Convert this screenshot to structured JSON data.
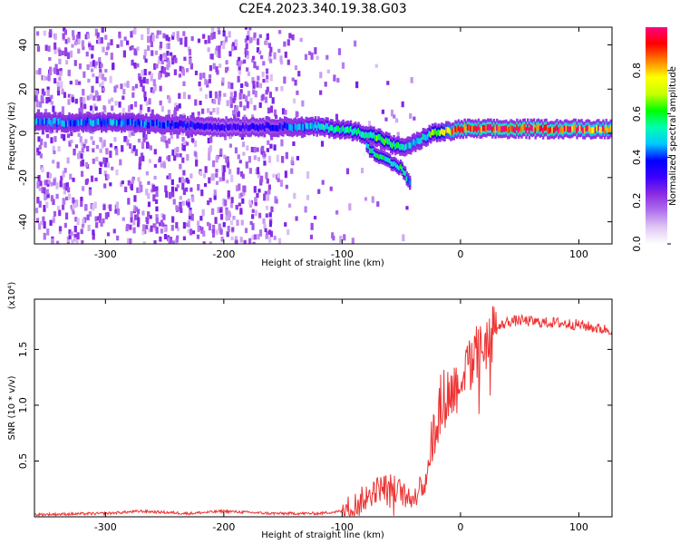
{
  "figure": {
    "title": "C2E4.2023.340.19.38.G03"
  },
  "chart_data": [
    {
      "type": "heatmap",
      "xlabel": "Height of straight line (km)",
      "ylabel": "Frequency (Hz)",
      "xlim": [
        -360,
        128
      ],
      "ylim": [
        -50,
        48
      ],
      "x_ticks": [
        -300,
        -200,
        -100,
        0,
        100
      ],
      "y_ticks": [
        -40,
        -20,
        0,
        20,
        40
      ],
      "grid": false,
      "colorbar": {
        "label": "Normalized spectral amplitude",
        "ticks": [
          "0.0",
          "0.2",
          "0.4",
          "0.6",
          "0.8"
        ],
        "range": [
          0,
          1
        ],
        "colormap": [
          "#ffffff",
          "#e0c8f4",
          "#b070ee",
          "#8a2be2",
          "#3c00ff",
          "#0000ff",
          "#00c8ff",
          "#00ffb0",
          "#00ff00",
          "#c8ff00",
          "#ffff00",
          "#ff8000",
          "#ff0000",
          "#ff0080"
        ]
      },
      "ridge": [
        {
          "x": -360,
          "freq": 5,
          "amp": 0.42
        },
        {
          "x": -300,
          "freq": 5,
          "amp": 0.45
        },
        {
          "x": -250,
          "freq": 4,
          "amp": 0.4
        },
        {
          "x": -200,
          "freq": 3,
          "amp": 0.3
        },
        {
          "x": -160,
          "freq": 3,
          "amp": 0.35
        },
        {
          "x": -120,
          "freq": 3,
          "amp": 0.5
        },
        {
          "x": -90,
          "freq": 1,
          "amp": 0.55
        },
        {
          "x": -70,
          "freq": -2,
          "amp": 0.6
        },
        {
          "x": -55,
          "freq": -6,
          "amp": 0.55
        },
        {
          "x": -45,
          "freq": -6,
          "amp": 0.45
        },
        {
          "x": -35,
          "freq": -3,
          "amp": 0.45
        },
        {
          "x": -25,
          "freq": 0,
          "amp": 0.6
        },
        {
          "x": -10,
          "freq": 1,
          "amp": 0.8
        },
        {
          "x": 0,
          "freq": 2,
          "amp": 0.9
        },
        {
          "x": 50,
          "freq": 2,
          "amp": 0.95
        },
        {
          "x": 100,
          "freq": 2,
          "amp": 0.9
        },
        {
          "x": 128,
          "freq": 2,
          "amp": 0.85
        }
      ],
      "branch": [
        {
          "x": -80,
          "freq": -6,
          "amp": 0.55
        },
        {
          "x": -65,
          "freq": -12,
          "amp": 0.55
        },
        {
          "x": -50,
          "freq": -16,
          "amp": 0.55
        },
        {
          "x": -43,
          "freq": -23,
          "amp": 0.45
        }
      ]
    },
    {
      "type": "line",
      "xlabel": "Height of straight line (km)",
      "ylabel": "SNR (10 * v/v)",
      "scale_label": "(x10⁴)",
      "xlim": [
        -360,
        128
      ],
      "ylim": [
        0,
        1.95
      ],
      "x_ticks": [
        -300,
        -200,
        -100,
        0,
        100
      ],
      "y_ticks": [
        0.5,
        1.0,
        1.5
      ],
      "series": [
        {
          "color": "#ee3333",
          "x": [
            -360,
            -300,
            -270,
            -230,
            -200,
            -160,
            -120,
            -100,
            -90,
            -80,
            -70,
            -60,
            -50,
            -40,
            -30,
            -25,
            -20,
            -15,
            -10,
            -5,
            0,
            10,
            20,
            30,
            40,
            50,
            60,
            70,
            80,
            90,
            100,
            110,
            120,
            128
          ],
          "y": [
            0.02,
            0.03,
            0.05,
            0.03,
            0.05,
            0.03,
            0.03,
            0.05,
            0.1,
            0.18,
            0.25,
            0.28,
            0.22,
            0.18,
            0.3,
            0.6,
            0.9,
            1.05,
            1.1,
            1.15,
            1.25,
            1.4,
            1.55,
            1.68,
            1.75,
            1.76,
            1.75,
            1.74,
            1.74,
            1.73,
            1.72,
            1.7,
            1.68,
            1.68
          ]
        }
      ]
    }
  ]
}
